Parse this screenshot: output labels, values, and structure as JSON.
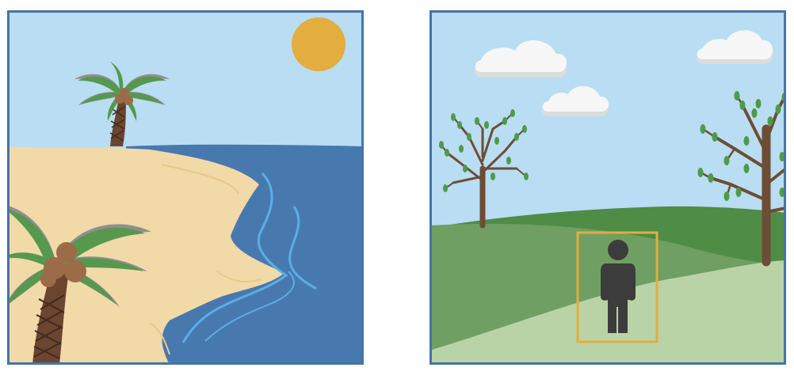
{
  "colors": {
    "frame": "#4474a9",
    "sky": "#b9ddf2",
    "sun": "#e3ad3f",
    "sand": "#f2d9a8",
    "sand_line": "#e7c98a",
    "sea": "#4879ae",
    "wave": "#59aee6",
    "palm_leaf": "#56984e",
    "palm_leaf_edge": "#8f8f8f",
    "palm_trunk": "#6b4530",
    "coconut": "#9c6b47",
    "hill_dark": "#4f8c45",
    "hill_mid": "#6f9f62",
    "hill_light": "#b9d3a6",
    "tree_trunk": "#6d4d35",
    "tree_leaf": "#4f9a4a",
    "cloud": "#f7f7f7",
    "cloud_shade": "#dcdcdc",
    "person": "#3c3c3c",
    "bounding_box": "#e3ad3f"
  },
  "panels": [
    {
      "scene": "beach",
      "objects": [
        "sun-icon",
        "palm-tree-icon",
        "palm-tree-icon",
        "sea",
        "beach"
      ]
    },
    {
      "scene": "meadow",
      "objects": [
        "cloud-icon",
        "cloud-icon",
        "cloud-icon",
        "tree-icon",
        "tree-icon",
        "person-icon",
        "bounding-box"
      ]
    }
  ]
}
